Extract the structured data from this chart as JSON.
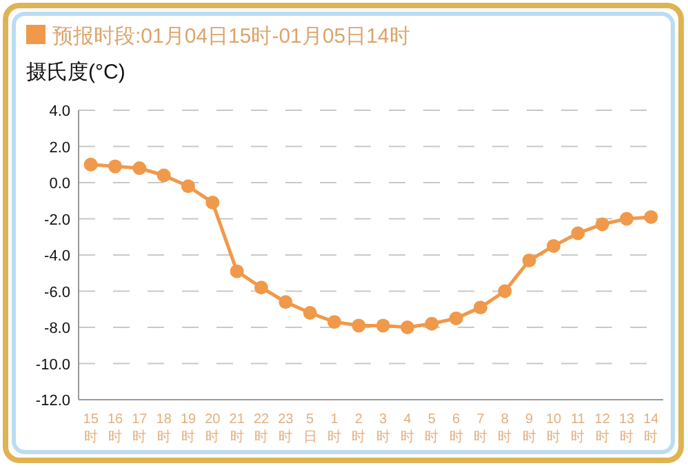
{
  "chart_data": {
    "type": "line",
    "title": "预报时段:01月04日15时-01月05日14时",
    "ylabel": "摄氏度(°C)",
    "categories": [
      "15时",
      "16时",
      "17时",
      "18时",
      "19时",
      "20时",
      "21时",
      "22时",
      "23时",
      "5日",
      "1时",
      "2时",
      "3时",
      "4时",
      "5时",
      "6时",
      "7时",
      "8时",
      "9时",
      "10时",
      "11时",
      "12时",
      "13时",
      "14时"
    ],
    "series": [
      {
        "color": "#f0994a",
        "values": [
          1.0,
          0.9,
          0.8,
          0.4,
          -0.2,
          -1.1,
          -4.9,
          -5.8,
          -6.6,
          -7.2,
          -7.7,
          -7.9,
          -7.9,
          -8.0,
          -7.8,
          -7.5,
          -6.9,
          -6.0,
          -4.3,
          -3.5,
          -2.8,
          -2.3,
          -2.0,
          -1.9
        ]
      }
    ],
    "ylim": [
      -12,
      4
    ],
    "yticks": [
      {
        "value": -12,
        "label": "-12.0"
      },
      {
        "value": -10,
        "label": "-10.0"
      },
      {
        "value": -8,
        "label": "-8.0"
      },
      {
        "value": -6,
        "label": "-6.0"
      },
      {
        "value": -4,
        "label": "-4.0"
      },
      {
        "value": -2,
        "label": "-2.0"
      },
      {
        "value": 0,
        "label": "0.0"
      },
      {
        "value": 2,
        "label": "2.0"
      },
      {
        "value": 4,
        "label": "4.0"
      }
    ],
    "grid": "y",
    "marker": "circle",
    "line_style": "solid"
  }
}
